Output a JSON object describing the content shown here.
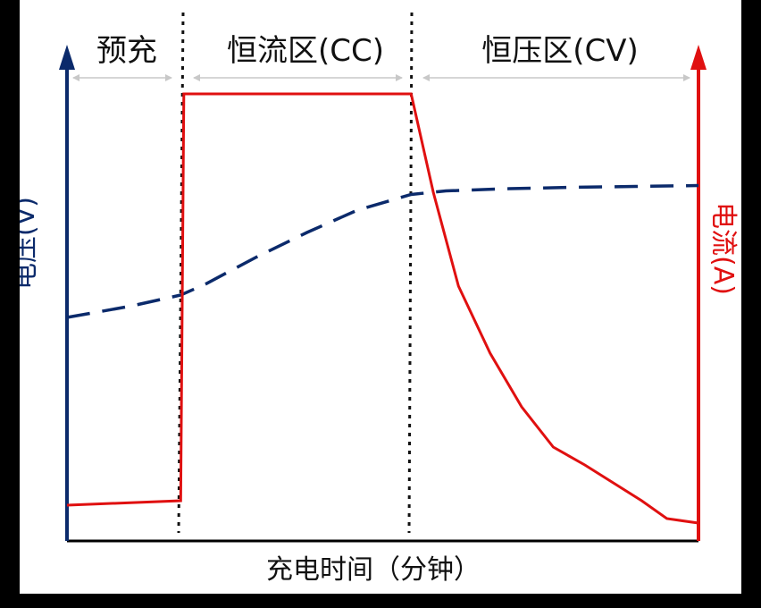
{
  "colors": {
    "voltage": "#0b2a6b",
    "current": "#e01010",
    "divider": "#111111",
    "range_arrow": "#c8c8c8",
    "axis": "#000000"
  },
  "chart_data": {
    "type": "line",
    "title": "",
    "xlabel": "充电时间（分钟）",
    "ylabel_left": "电压(V)",
    "ylabel_right": "电流(A)",
    "xlim": [
      0,
      100
    ],
    "ylim": [
      0,
      100
    ],
    "xticks": [],
    "yticks": [],
    "grid": false,
    "phases": [
      {
        "label": "预充",
        "start": 0,
        "end": 18
      },
      {
        "label": "恒流区(CC)",
        "start": 18,
        "end": 54.5
      },
      {
        "label": "恒压区(CV)",
        "start": 54.5,
        "end": 100
      }
    ],
    "series": [
      {
        "name": "电压(V)",
        "axis": "left",
        "style": "dashed",
        "x": [
          0,
          10,
          18,
          22,
          30,
          38,
          46,
          54.5,
          60,
          70,
          80,
          90,
          100
        ],
        "y": [
          50,
          52.5,
          55,
          57.5,
          63.5,
          69,
          74,
          77.5,
          78.3,
          78.8,
          79.1,
          79.3,
          79.5
        ]
      },
      {
        "name": "电流(A)",
        "axis": "right",
        "style": "solid",
        "x": [
          0,
          18,
          18.5,
          54.5,
          58,
          62,
          67,
          72,
          77,
          82,
          91,
          95,
          100
        ],
        "y": [
          8,
          9,
          100,
          100,
          78,
          57,
          42,
          30,
          21,
          17,
          9,
          5,
          4
        ]
      }
    ]
  }
}
